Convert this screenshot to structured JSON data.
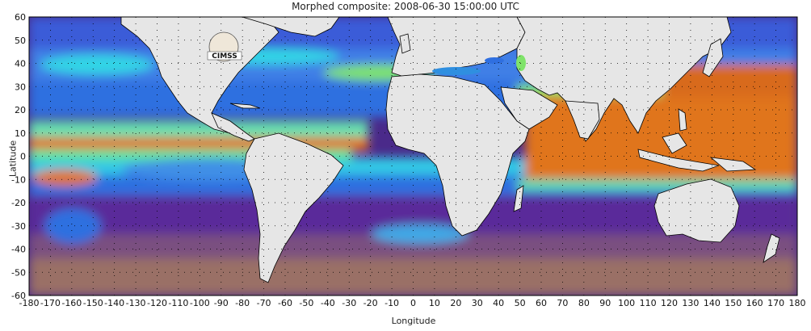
{
  "title": "Morphed composite: 2008-06-30 15:00:00 UTC",
  "xlabel": "Longitude",
  "ylabel": "Latitude",
  "logo_text": "CIMSS",
  "x_ticks": [
    -180,
    -170,
    -160,
    -150,
    -140,
    -130,
    -120,
    -110,
    -100,
    -90,
    -80,
    -70,
    -60,
    -50,
    -40,
    -30,
    -20,
    -10,
    0,
    10,
    20,
    30,
    40,
    50,
    60,
    70,
    80,
    90,
    100,
    110,
    120,
    130,
    140,
    150,
    160,
    170,
    180
  ],
  "y_ticks": [
    60,
    50,
    40,
    30,
    20,
    10,
    0,
    -10,
    -20,
    -30,
    -40,
    -50,
    -60
  ],
  "colors": {
    "land": "#e6e6e6",
    "border": "#000000",
    "grid": "#000000",
    "purple": "#5a1b8c",
    "blue": "#2f6fe0",
    "cyan": "#33d6e6",
    "green": "#7fe36a",
    "orange": "#e0741a",
    "brown": "#b07a55"
  }
}
